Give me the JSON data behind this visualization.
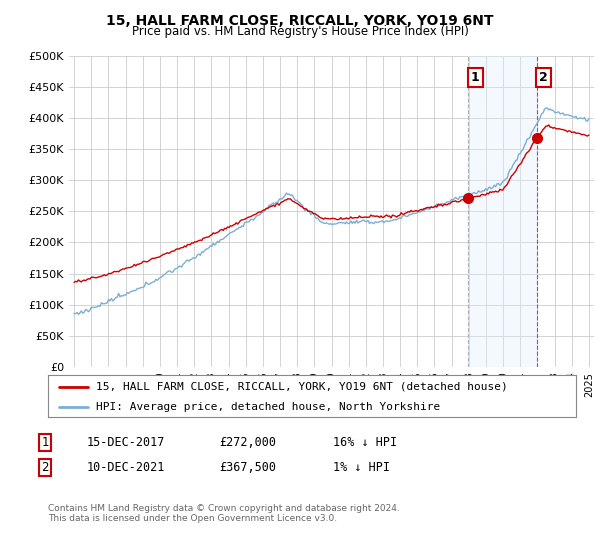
{
  "title": "15, HALL FARM CLOSE, RICCALL, YORK, YO19 6NT",
  "subtitle": "Price paid vs. HM Land Registry's House Price Index (HPI)",
  "ylim": [
    0,
    500000
  ],
  "yticks": [
    0,
    50000,
    100000,
    150000,
    200000,
    250000,
    300000,
    350000,
    400000,
    450000,
    500000
  ],
  "ytick_labels": [
    "£0",
    "£50K",
    "£100K",
    "£150K",
    "£200K",
    "£250K",
    "£300K",
    "£350K",
    "£400K",
    "£450K",
    "£500K"
  ],
  "hpi_color": "#7bafd4",
  "price_color": "#cc0000",
  "annotation_box_color": "#cc0000",
  "dashed_line1_color": "#aaaaaa",
  "dashed_line2_color": "#cc0000",
  "shade_color": "#ddeeff",
  "background_color": "#ffffff",
  "grid_color": "#cccccc",
  "sale1_year": 2017.96,
  "sale1_price": 272000,
  "sale2_year": 2021.96,
  "sale2_price": 367500,
  "legend_line1": "15, HALL FARM CLOSE, RICCALL, YORK, YO19 6NT (detached house)",
  "legend_line2": "HPI: Average price, detached house, North Yorkshire",
  "footer": "Contains HM Land Registry data © Crown copyright and database right 2024.\nThis data is licensed under the Open Government Licence v3.0."
}
